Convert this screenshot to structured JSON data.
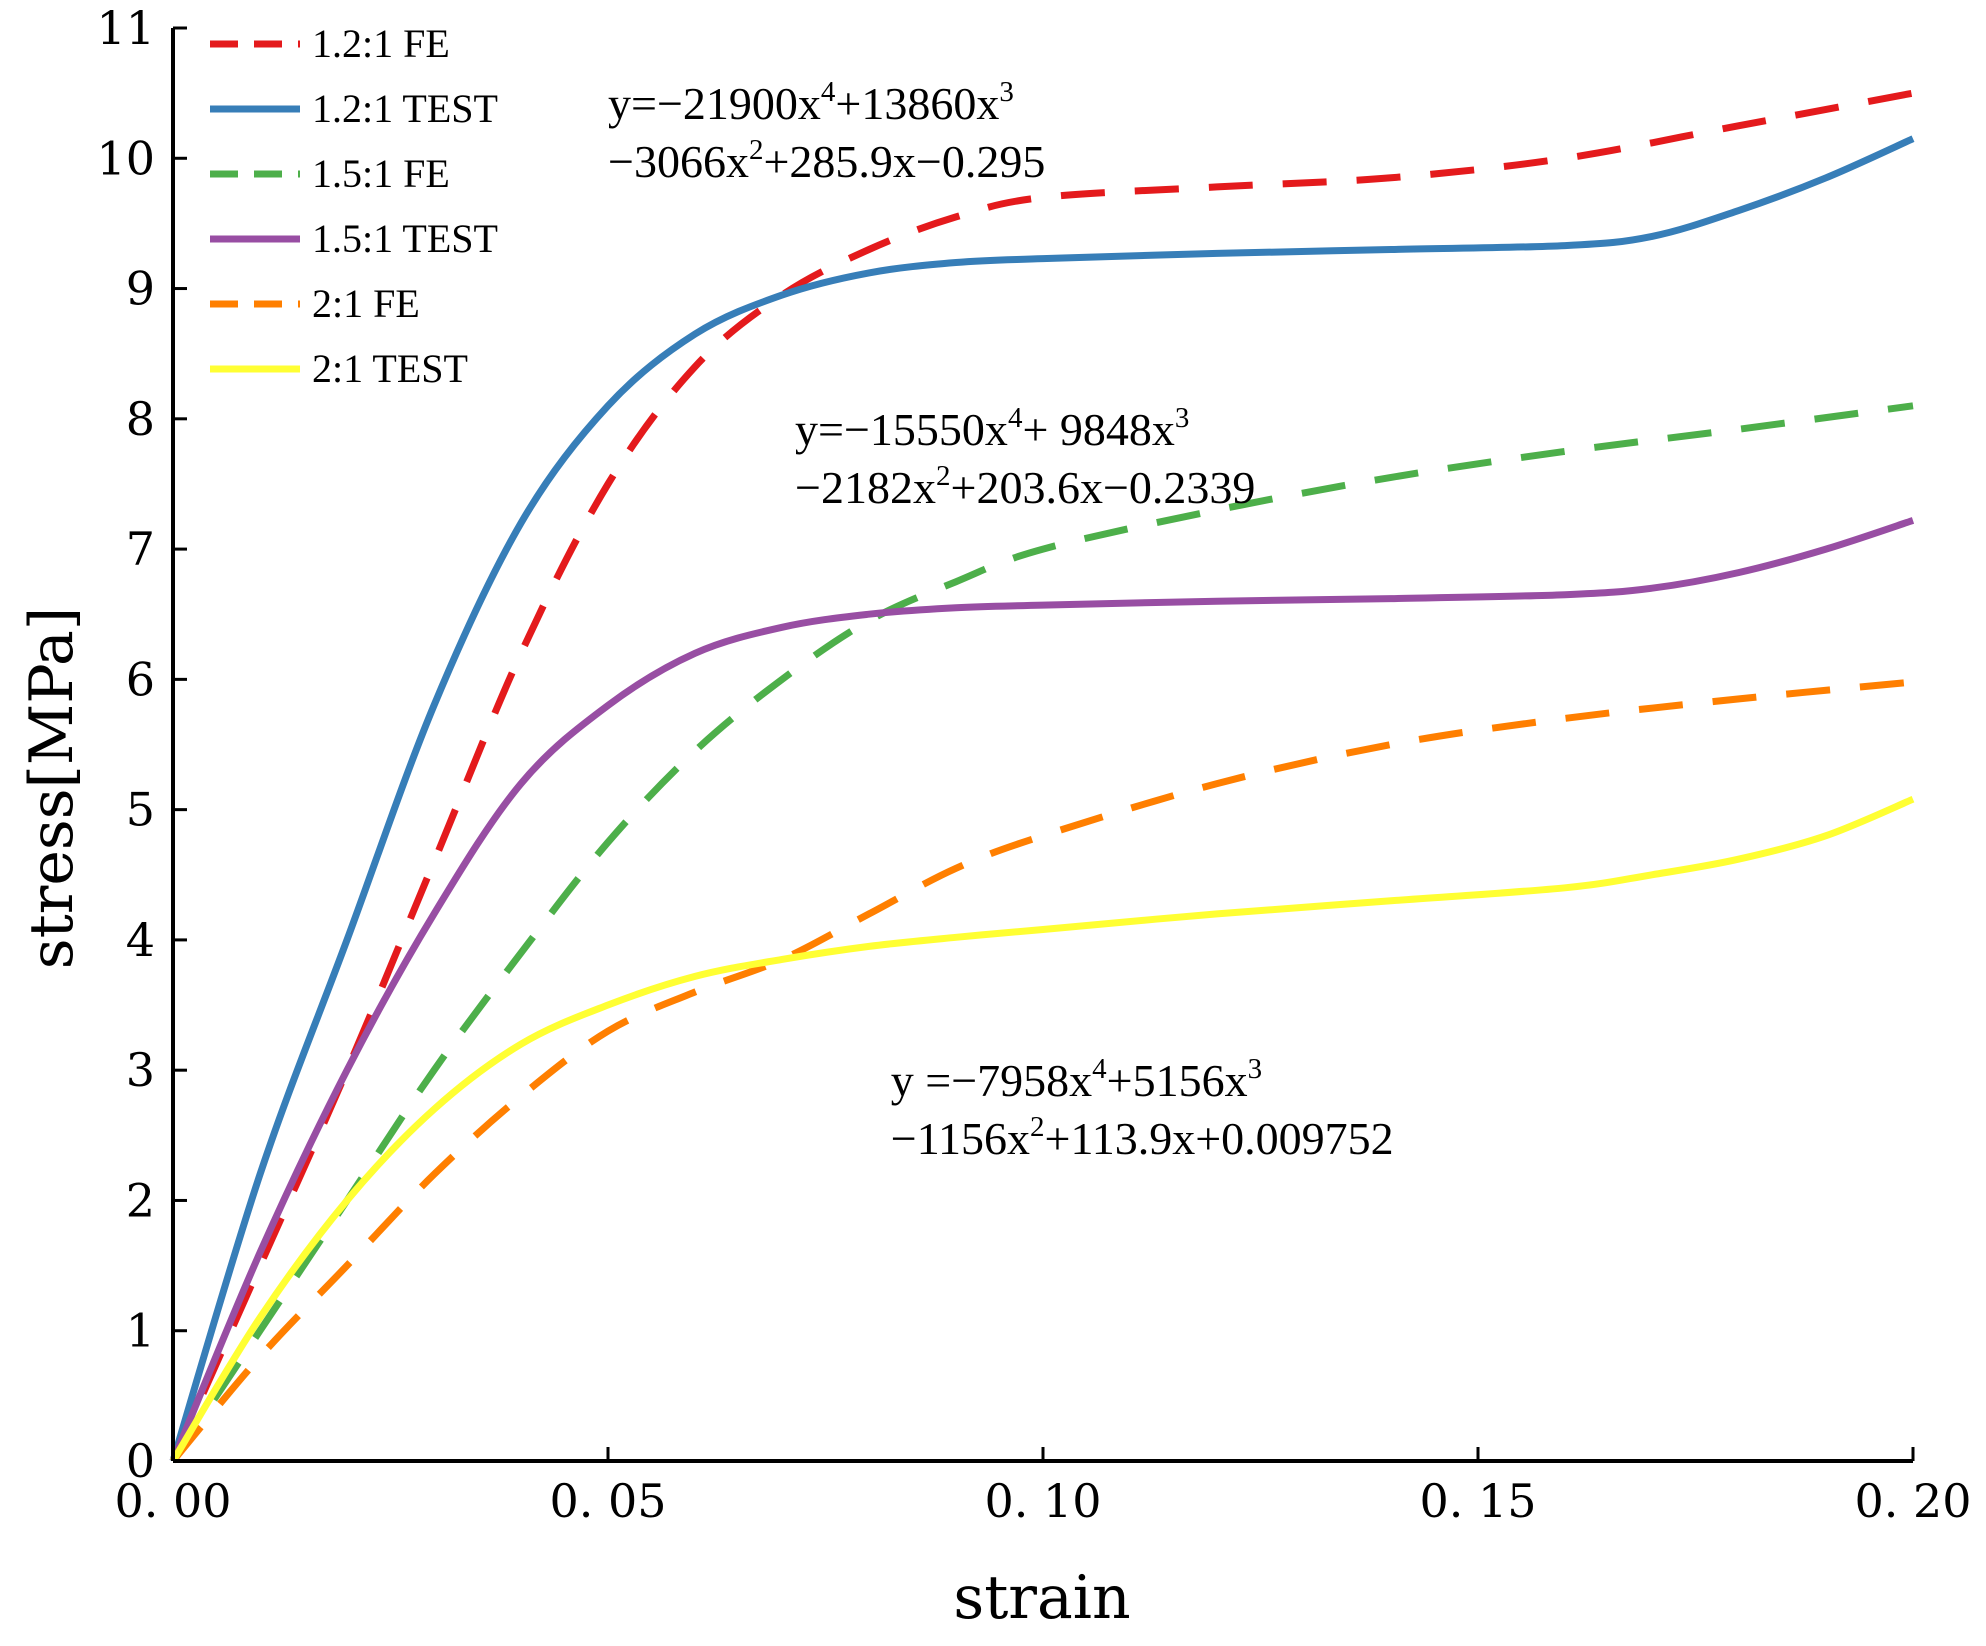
{
  "chart_data": {
    "type": "line",
    "title": "",
    "xlabel": "strain",
    "ylabel": "stress[MPa]",
    "xlim": [
      0,
      0.2
    ],
    "ylim": [
      0,
      11
    ],
    "x_ticks": [
      "0. 00",
      "0. 05",
      "0. 10",
      "0. 15",
      "0. 20"
    ],
    "y_ticks": [
      "0",
      "1",
      "2",
      "3",
      "4",
      "5",
      "6",
      "7",
      "8",
      "9",
      "10",
      "11"
    ],
    "grid": false,
    "legend_position": "top-left",
    "series": [
      {
        "name": "1.2:1 FE",
        "color": "#e41a1c",
        "style": "dashed",
        "points": [
          [
            0,
            0
          ],
          [
            0.01,
            1.5
          ],
          [
            0.02,
            3.0
          ],
          [
            0.03,
            4.6
          ],
          [
            0.04,
            6.2
          ],
          [
            0.05,
            7.5
          ],
          [
            0.06,
            8.4
          ],
          [
            0.07,
            8.95
          ],
          [
            0.08,
            9.3
          ],
          [
            0.09,
            9.55
          ],
          [
            0.1,
            9.7
          ],
          [
            0.12,
            9.78
          ],
          [
            0.14,
            9.85
          ],
          [
            0.16,
            10.0
          ],
          [
            0.18,
            10.25
          ],
          [
            0.2,
            10.5
          ]
        ]
      },
      {
        "name": "1.2:1 TEST",
        "color": "#377eb8",
        "style": "solid",
        "points": [
          [
            0,
            0
          ],
          [
            0.01,
            2.2
          ],
          [
            0.02,
            4.0
          ],
          [
            0.03,
            5.8
          ],
          [
            0.04,
            7.2
          ],
          [
            0.05,
            8.1
          ],
          [
            0.06,
            8.65
          ],
          [
            0.07,
            8.95
          ],
          [
            0.08,
            9.12
          ],
          [
            0.09,
            9.2
          ],
          [
            0.1,
            9.23
          ],
          [
            0.12,
            9.27
          ],
          [
            0.14,
            9.3
          ],
          [
            0.16,
            9.33
          ],
          [
            0.17,
            9.4
          ],
          [
            0.18,
            9.6
          ],
          [
            0.19,
            9.85
          ],
          [
            0.2,
            10.15
          ]
        ]
      },
      {
        "name": "1.5:1 FE",
        "color": "#4daf4a",
        "style": "dashed",
        "points": [
          [
            0,
            0
          ],
          [
            0.01,
            1.0
          ],
          [
            0.02,
            2.0
          ],
          [
            0.03,
            3.0
          ],
          [
            0.04,
            3.9
          ],
          [
            0.05,
            4.75
          ],
          [
            0.06,
            5.45
          ],
          [
            0.07,
            6.0
          ],
          [
            0.08,
            6.45
          ],
          [
            0.09,
            6.75
          ],
          [
            0.1,
            7.0
          ],
          [
            0.12,
            7.3
          ],
          [
            0.14,
            7.55
          ],
          [
            0.16,
            7.75
          ],
          [
            0.18,
            7.92
          ],
          [
            0.2,
            8.1
          ]
        ]
      },
      {
        "name": "1.5:1 TEST",
        "color": "#984ea3",
        "style": "solid",
        "points": [
          [
            0,
            0
          ],
          [
            0.01,
            1.6
          ],
          [
            0.02,
            3.0
          ],
          [
            0.03,
            4.2
          ],
          [
            0.04,
            5.2
          ],
          [
            0.05,
            5.8
          ],
          [
            0.06,
            6.2
          ],
          [
            0.07,
            6.4
          ],
          [
            0.08,
            6.5
          ],
          [
            0.09,
            6.55
          ],
          [
            0.1,
            6.57
          ],
          [
            0.12,
            6.6
          ],
          [
            0.14,
            6.62
          ],
          [
            0.16,
            6.65
          ],
          [
            0.17,
            6.7
          ],
          [
            0.18,
            6.82
          ],
          [
            0.19,
            7.0
          ],
          [
            0.2,
            7.22
          ]
        ]
      },
      {
        "name": "2:1   FE",
        "color": "#ff7f00",
        "style": "dashed",
        "points": [
          [
            0,
            0
          ],
          [
            0.01,
            0.8
          ],
          [
            0.02,
            1.5
          ],
          [
            0.03,
            2.2
          ],
          [
            0.04,
            2.8
          ],
          [
            0.05,
            3.3
          ],
          [
            0.06,
            3.6
          ],
          [
            0.07,
            3.85
          ],
          [
            0.08,
            4.2
          ],
          [
            0.09,
            4.55
          ],
          [
            0.1,
            4.8
          ],
          [
            0.12,
            5.2
          ],
          [
            0.14,
            5.5
          ],
          [
            0.16,
            5.7
          ],
          [
            0.18,
            5.85
          ],
          [
            0.2,
            5.98
          ]
        ]
      },
      {
        "name": "2:1   TEST",
        "color": "#ffff33",
        "style": "solid",
        "points": [
          [
            0,
            0
          ],
          [
            0.01,
            1.1
          ],
          [
            0.02,
            2.0
          ],
          [
            0.03,
            2.7
          ],
          [
            0.04,
            3.2
          ],
          [
            0.05,
            3.5
          ],
          [
            0.06,
            3.72
          ],
          [
            0.07,
            3.85
          ],
          [
            0.08,
            3.95
          ],
          [
            0.09,
            4.02
          ],
          [
            0.1,
            4.08
          ],
          [
            0.12,
            4.2
          ],
          [
            0.14,
            4.3
          ],
          [
            0.16,
            4.4
          ],
          [
            0.17,
            4.5
          ],
          [
            0.18,
            4.62
          ],
          [
            0.19,
            4.8
          ],
          [
            0.2,
            5.08
          ]
        ]
      }
    ],
    "annotations": [
      {
        "lines": [
          [
            {
              "t": "y=−21900x"
            },
            {
              "t": "4",
              "sup": true
            },
            {
              "t": "+13860x"
            },
            {
              "t": "3",
              "sup": true
            }
          ],
          [
            {
              "t": "−3066x"
            },
            {
              "t": "2",
              "sup": true
            },
            {
              "t": "+285.9x−0.295"
            }
          ]
        ],
        "x": 0.05,
        "y": 10.3
      },
      {
        "lines": [
          [
            {
              "t": "y=−15550x"
            },
            {
              "t": "4",
              "sup": true
            },
            {
              "t": "+ 9848x"
            },
            {
              "t": "3",
              "sup": true
            }
          ],
          [
            {
              "t": "−2182x"
            },
            {
              "t": "2",
              "sup": true
            },
            {
              "t": "+203.6x−0.2339"
            }
          ]
        ],
        "x": 0.0715,
        "y": 7.8
      },
      {
        "lines": [
          [
            {
              "t": "y =−7958x"
            },
            {
              "t": "4",
              "sup": true
            },
            {
              "t": "+5156x"
            },
            {
              "t": "3",
              "sup": true
            }
          ],
          [
            {
              "t": "−1156x"
            },
            {
              "t": "2",
              "sup": true
            },
            {
              "t": "+113.9x+0.009752"
            }
          ]
        ],
        "x": 0.0825,
        "y": 2.8
      }
    ]
  }
}
